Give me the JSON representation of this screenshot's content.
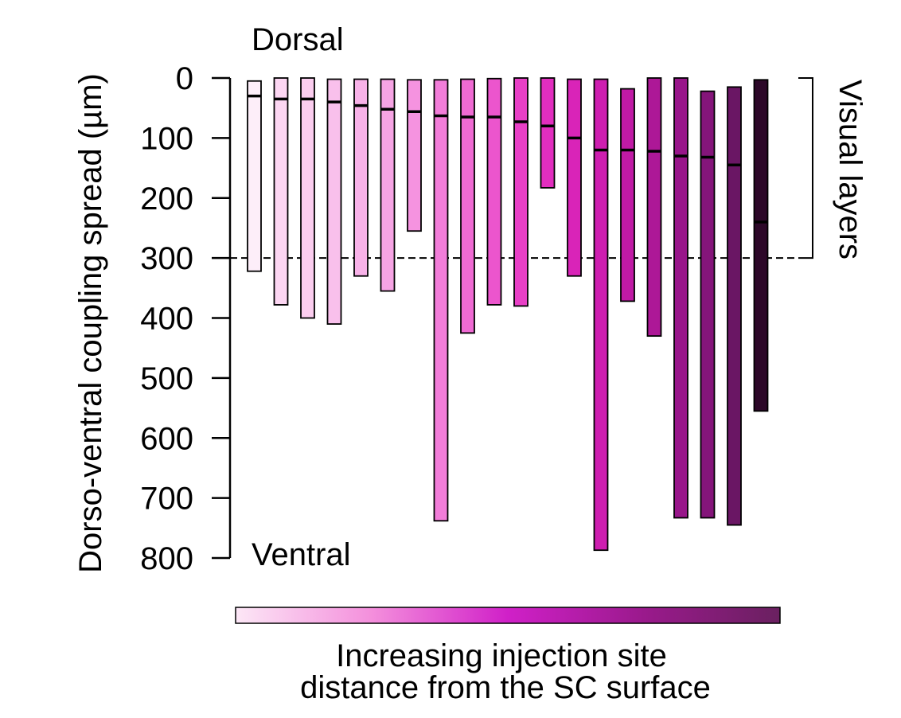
{
  "chart_data": {
    "type": "floating-bar",
    "ylabel": "Dorso-ventral coupling spread (µm)",
    "ylim": [
      0,
      800
    ],
    "y_inverted": true,
    "yticks": [
      "0",
      "100",
      "200",
      "300",
      "400",
      "500",
      "600",
      "700",
      "800"
    ],
    "top_label": "Dorsal",
    "bottom_label": "Ventral",
    "bracket_label": "Visual layers",
    "bracket_range": [
      0,
      300
    ],
    "threshold_line": 300,
    "colorbar_caption_line1": "Increasing injection site",
    "colorbar_caption_line2": "distance from the SC surface",
    "colorbar_colors": [
      "#fce7f6",
      "#f48fdc",
      "#d020c8",
      "#9a1a8c",
      "#6a2060"
    ],
    "bars": [
      {
        "top": 5,
        "bottom": 322,
        "injection_site": 30,
        "color": "#fdeef9"
      },
      {
        "top": 0,
        "bottom": 378,
        "injection_site": 35,
        "color": "#fcd6f2"
      },
      {
        "top": 0,
        "bottom": 400,
        "injection_site": 35,
        "color": "#fbcdef"
      },
      {
        "top": 2,
        "bottom": 410,
        "injection_site": 40,
        "color": "#f9c0ec"
      },
      {
        "top": 2,
        "bottom": 330,
        "injection_site": 46,
        "color": "#f8b2e8"
      },
      {
        "top": 2,
        "bottom": 355,
        "injection_site": 52,
        "color": "#f6a4e4"
      },
      {
        "top": 3,
        "bottom": 255,
        "injection_site": 56,
        "color": "#f593e0"
      },
      {
        "top": 3,
        "bottom": 738,
        "injection_site": 63,
        "color": "#f27dd9"
      },
      {
        "top": 2,
        "bottom": 425,
        "injection_site": 65,
        "color": "#ef6ad3"
      },
      {
        "top": 1,
        "bottom": 378,
        "injection_site": 65,
        "color": "#ec55cd"
      },
      {
        "top": 0,
        "bottom": 380,
        "injection_site": 73,
        "color": "#e840c6"
      },
      {
        "top": 0,
        "bottom": 183,
        "injection_site": 80,
        "color": "#e22ebf"
      },
      {
        "top": 2,
        "bottom": 330,
        "injection_site": 100,
        "color": "#d924b8"
      },
      {
        "top": 2,
        "bottom": 787,
        "injection_site": 120,
        "color": "#ce1eb0"
      },
      {
        "top": 18,
        "bottom": 372,
        "injection_site": 120,
        "color": "#c01aa5"
      },
      {
        "top": 0,
        "bottom": 430,
        "injection_site": 122,
        "color": "#ad1897"
      },
      {
        "top": 0,
        "bottom": 733,
        "injection_site": 130,
        "color": "#98168a"
      },
      {
        "top": 22,
        "bottom": 733,
        "injection_site": 132,
        "color": "#84157a"
      },
      {
        "top": 15,
        "bottom": 745,
        "injection_site": 145,
        "color": "#6a1664"
      },
      {
        "top": 3,
        "bottom": 555,
        "injection_site": 240,
        "color": "#2d0829"
      }
    ]
  }
}
